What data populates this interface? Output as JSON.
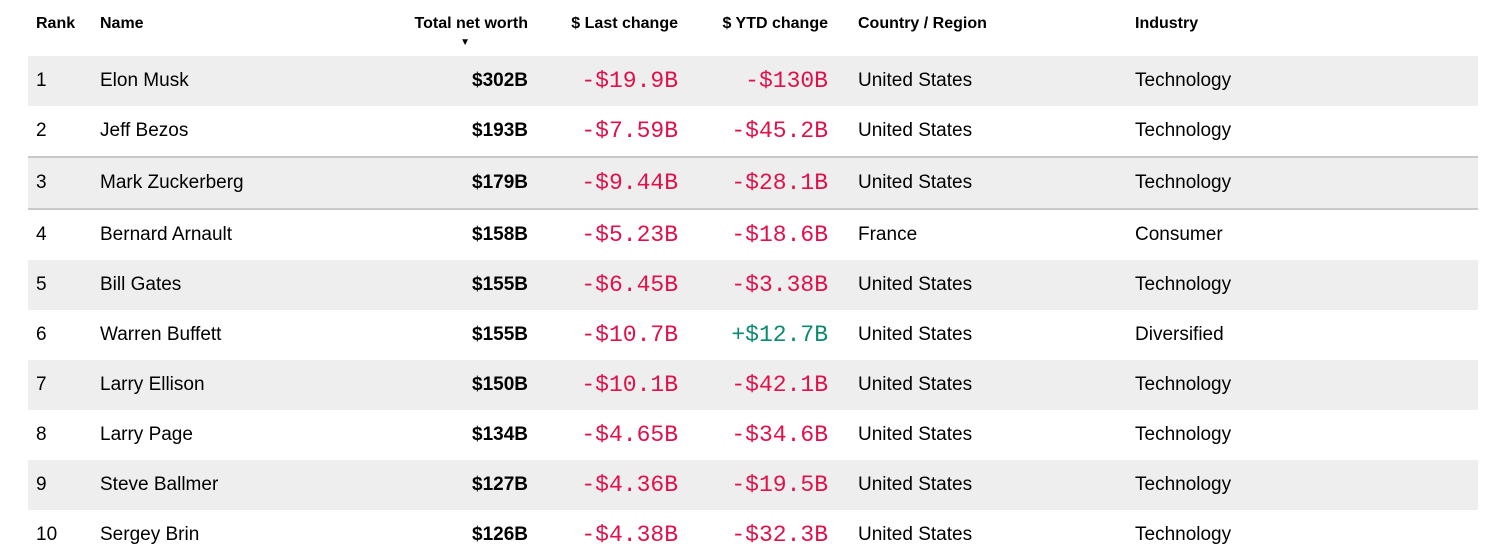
{
  "colors": {
    "negative": "#e0114a",
    "positive": "#0c8a6f",
    "row_alt_bg": "#eeeeee",
    "highlight_border": "#c9c9c9",
    "text": "#000000"
  },
  "table": {
    "highlighted_row_rank": "3",
    "sort": {
      "column": "net_worth",
      "direction": "desc",
      "icon": "▼"
    },
    "columns": [
      {
        "key": "rank",
        "label": "Rank",
        "align": "left"
      },
      {
        "key": "name",
        "label": "Name",
        "align": "left"
      },
      {
        "key": "net_worth",
        "label": "Total net worth",
        "align": "right"
      },
      {
        "key": "last_change",
        "label": "$ Last change",
        "align": "right"
      },
      {
        "key": "ytd_change",
        "label": "$ YTD change",
        "align": "right"
      },
      {
        "key": "country",
        "label": "Country / Region",
        "align": "left"
      },
      {
        "key": "industry",
        "label": "Industry",
        "align": "left"
      }
    ],
    "rows": [
      {
        "rank": "1",
        "name": "Elon Musk",
        "net_worth": "$302B",
        "last_change": "-$19.9B",
        "last_change_dir": "negative",
        "ytd_change": "-$130B",
        "ytd_change_dir": "negative",
        "country": "United States",
        "industry": "Technology"
      },
      {
        "rank": "2",
        "name": "Jeff Bezos",
        "net_worth": "$193B",
        "last_change": "-$7.59B",
        "last_change_dir": "negative",
        "ytd_change": "-$45.2B",
        "ytd_change_dir": "negative",
        "country": "United States",
        "industry": "Technology"
      },
      {
        "rank": "3",
        "name": "Mark Zuckerberg",
        "net_worth": "$179B",
        "last_change": "-$9.44B",
        "last_change_dir": "negative",
        "ytd_change": "-$28.1B",
        "ytd_change_dir": "negative",
        "country": "United States",
        "industry": "Technology"
      },
      {
        "rank": "4",
        "name": "Bernard Arnault",
        "net_worth": "$158B",
        "last_change": "-$5.23B",
        "last_change_dir": "negative",
        "ytd_change": "-$18.6B",
        "ytd_change_dir": "negative",
        "country": "France",
        "industry": "Consumer"
      },
      {
        "rank": "5",
        "name": "Bill Gates",
        "net_worth": "$155B",
        "last_change": "-$6.45B",
        "last_change_dir": "negative",
        "ytd_change": "-$3.38B",
        "ytd_change_dir": "negative",
        "country": "United States",
        "industry": "Technology"
      },
      {
        "rank": "6",
        "name": "Warren Buffett",
        "net_worth": "$155B",
        "last_change": "-$10.7B",
        "last_change_dir": "negative",
        "ytd_change": "+$12.7B",
        "ytd_change_dir": "positive",
        "country": "United States",
        "industry": "Diversified"
      },
      {
        "rank": "7",
        "name": "Larry Ellison",
        "net_worth": "$150B",
        "last_change": "-$10.1B",
        "last_change_dir": "negative",
        "ytd_change": "-$42.1B",
        "ytd_change_dir": "negative",
        "country": "United States",
        "industry": "Technology"
      },
      {
        "rank": "8",
        "name": "Larry Page",
        "net_worth": "$134B",
        "last_change": "-$4.65B",
        "last_change_dir": "negative",
        "ytd_change": "-$34.6B",
        "ytd_change_dir": "negative",
        "country": "United States",
        "industry": "Technology"
      },
      {
        "rank": "9",
        "name": "Steve Ballmer",
        "net_worth": "$127B",
        "last_change": "-$4.36B",
        "last_change_dir": "negative",
        "ytd_change": "-$19.5B",
        "ytd_change_dir": "negative",
        "country": "United States",
        "industry": "Technology"
      },
      {
        "rank": "10",
        "name": "Sergey Brin",
        "net_worth": "$126B",
        "last_change": "-$4.38B",
        "last_change_dir": "negative",
        "ytd_change": "-$32.3B",
        "ytd_change_dir": "negative",
        "country": "United States",
        "industry": "Technology"
      }
    ]
  }
}
